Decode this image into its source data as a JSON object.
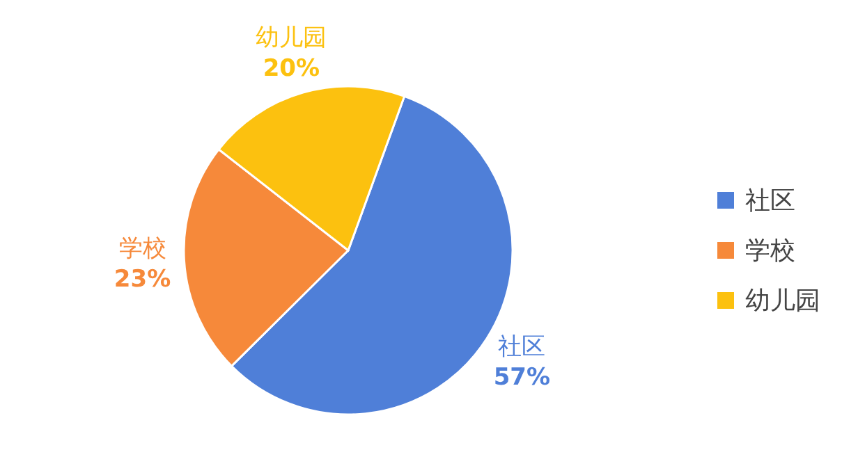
{
  "chart_data": {
    "type": "pie",
    "categories": [
      "社区",
      "学校",
      "幼儿园"
    ],
    "values": [
      57,
      23,
      20
    ],
    "colors": [
      "#4f7fd8",
      "#f6893a",
      "#fcc10f"
    ],
    "value_labels": [
      "57%",
      "23%",
      "20%"
    ],
    "legend": "right"
  }
}
